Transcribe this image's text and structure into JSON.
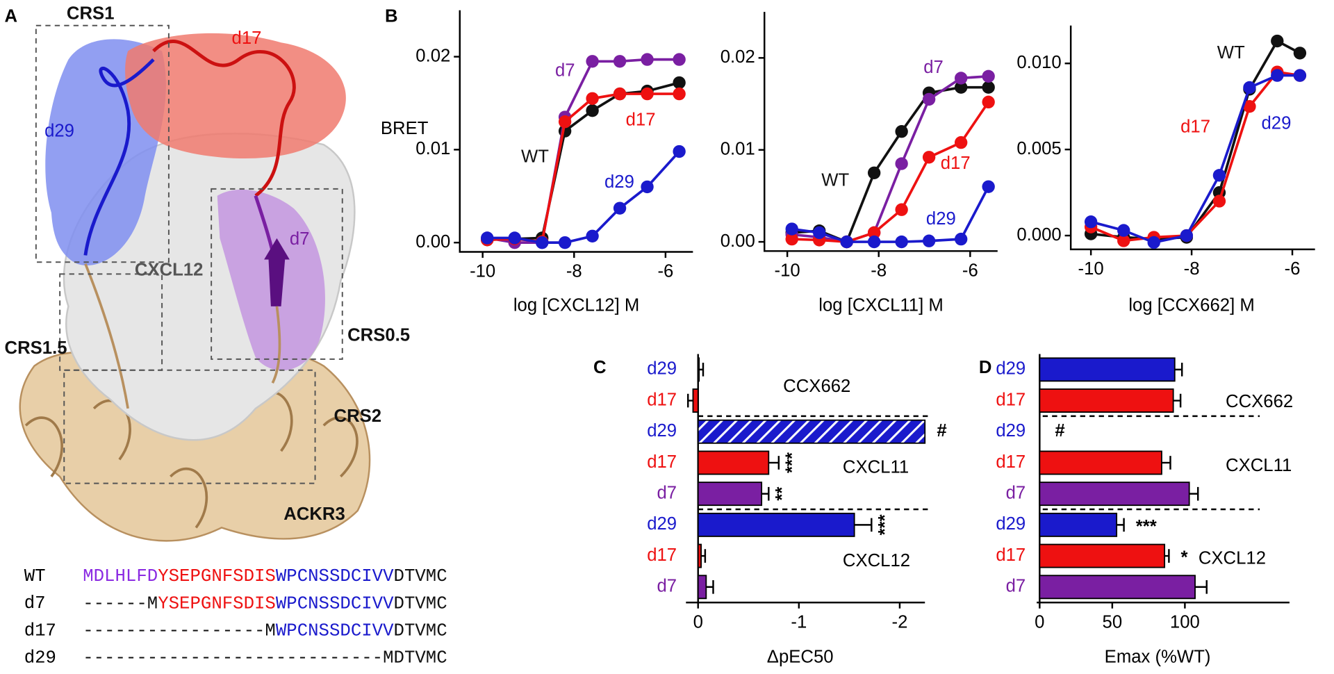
{
  "panel_labels": [
    "A",
    "B",
    "C",
    "D"
  ],
  "structure": {
    "labels": [
      {
        "text": "CRS1",
        "color": "#111111"
      },
      {
        "text": "d17",
        "color": "#ee1111"
      },
      {
        "text": "d29",
        "color": "#1a1acc"
      },
      {
        "text": "d7",
        "color": "#7a1fa2"
      },
      {
        "text": "CXCL12",
        "color": "#555555"
      },
      {
        "text": "CRS1.5",
        "color": "#111111"
      },
      {
        "text": "CRS0.5",
        "color": "#111111"
      },
      {
        "text": "CRS2",
        "color": "#111111"
      },
      {
        "text": "ACKR3",
        "color": "#111111"
      }
    ]
  },
  "sequences": [
    {
      "name": "WT",
      "segments": [
        {
          "text": "MDLHLFD",
          "color": "#8b2be2"
        },
        {
          "text": "YSEPGNFSDIS",
          "color": "#ee1111"
        },
        {
          "text": "WPCNSSDCIVV",
          "color": "#1a1acc"
        },
        {
          "text": "DTVMC",
          "color": "#111111"
        }
      ]
    },
    {
      "name": "d7",
      "segments": [
        {
          "text": "------M",
          "color": "#111111"
        },
        {
          "text": "YSEPGNFSDIS",
          "color": "#ee1111"
        },
        {
          "text": "WPCNSSDCIVV",
          "color": "#1a1acc"
        },
        {
          "text": "DTVMC",
          "color": "#111111"
        }
      ]
    },
    {
      "name": "d17",
      "segments": [
        {
          "text": "-----------------M",
          "color": "#111111"
        },
        {
          "text": "WPCNSSDCIVV",
          "color": "#1a1acc"
        },
        {
          "text": "DTVMC",
          "color": "#111111"
        }
      ]
    },
    {
      "name": "d29",
      "segments": [
        {
          "text": "----------------------------MDTVMC",
          "color": "#111111"
        }
      ]
    }
  ],
  "chart_data": [
    {
      "type": "line",
      "ylabel": "BRET",
      "xlabel": "log [CXCL12] M",
      "x": [
        -9.9,
        -9.3,
        -8.7,
        -8.2,
        -7.6,
        -7.0,
        -6.4,
        -5.7
      ],
      "xlim": [
        -10.5,
        -5.4
      ],
      "ylim": [
        -0.001,
        0.025
      ],
      "xticks": [
        -10,
        -8,
        -6
      ],
      "yticks": [
        {
          "value": 0,
          "label": "0.00"
        },
        {
          "value": 0.01,
          "label": "0.01"
        },
        {
          "value": 0.02,
          "label": "0.02"
        }
      ],
      "series": [
        {
          "name": "WT",
          "color": "#111111",
          "values": [
            0.0003,
            0.0004,
            0.0005,
            0.012,
            0.0142,
            0.016,
            0.0163,
            0.0172
          ]
        },
        {
          "name": "d7",
          "color": "#7a1fa2",
          "values": [
            0.0005,
            0.0,
            0.0,
            0.0135,
            0.0195,
            0.0195,
            0.0197,
            0.0197
          ]
        },
        {
          "name": "d17",
          "color": "#ee1111",
          "values": [
            0.0003,
            0.0004,
            0.0001,
            0.013,
            0.0155,
            0.016,
            0.016,
            0.016
          ]
        },
        {
          "name": "d29",
          "color": "#1a1acc",
          "values": [
            0.0005,
            0.0005,
            0.0,
            0.0,
            0.0007,
            0.0037,
            0.006,
            0.0098
          ]
        }
      ]
    },
    {
      "type": "line",
      "xlabel": "log [CXCL11] M",
      "x": [
        -9.9,
        -9.3,
        -8.7,
        -8.1,
        -7.5,
        -6.9,
        -6.2,
        -5.6
      ],
      "xlim": [
        -10.5,
        -5.4
      ],
      "ylim": [
        -0.001,
        0.025
      ],
      "xticks": [
        -10,
        -8,
        -6
      ],
      "yticks": [
        {
          "value": 0,
          "label": "0.00"
        },
        {
          "value": 0.01,
          "label": "0.01"
        },
        {
          "value": 0.02,
          "label": "0.02"
        }
      ],
      "series": [
        {
          "name": "WT",
          "color": "#111111",
          "values": [
            0.001,
            0.0012,
            0.0,
            0.0075,
            0.012,
            0.0162,
            0.0168,
            0.0168
          ]
        },
        {
          "name": "d7",
          "color": "#7a1fa2",
          "values": [
            0.0008,
            0.0005,
            0.0,
            0.001,
            0.0085,
            0.0155,
            0.0178,
            0.018
          ]
        },
        {
          "name": "d17",
          "color": "#ee1111",
          "values": [
            0.0003,
            0.0002,
            0.0,
            0.001,
            0.0035,
            0.0092,
            0.0108,
            0.0152
          ]
        },
        {
          "name": "d29",
          "color": "#1a1acc",
          "values": [
            0.0014,
            0.001,
            0.0,
            0.0,
            0.0,
            0.0001,
            0.0003,
            0.006
          ]
        }
      ]
    },
    {
      "type": "line",
      "xlabel": "log [CCX662] M",
      "x": [
        -10.0,
        -9.35,
        -8.75,
        -8.1,
        -7.45,
        -6.85,
        -6.3,
        -5.85
      ],
      "xlim": [
        -10.4,
        -5.55
      ],
      "ylim": [
        -0.0008,
        0.0122
      ],
      "xticks": [
        -10,
        -8,
        -6
      ],
      "yticks": [
        {
          "value": 0,
          "label": "0.000"
        },
        {
          "value": 0.005,
          "label": "0.005"
        },
        {
          "value": 0.01,
          "label": "0.010"
        }
      ],
      "series": [
        {
          "name": "WT",
          "color": "#111111",
          "values": [
            0.0001,
            -0.0001,
            -0.0002,
            -0.0001,
            0.0025,
            0.0085,
            0.0113,
            0.0106
          ]
        },
        {
          "name": "d17",
          "color": "#ee1111",
          "values": [
            0.0005,
            -0.0003,
            -0.0001,
            0.0,
            0.002,
            0.0075,
            0.0095,
            0.0093
          ]
        },
        {
          "name": "d29",
          "color": "#1a1acc",
          "values": [
            0.0008,
            0.0003,
            -0.0004,
            0.0,
            0.0035,
            0.0086,
            0.0093,
            0.0093
          ]
        }
      ]
    },
    {
      "type": "bar",
      "xlabel": "ΔpEC50",
      "xlim": [
        0.12,
        -2.25
      ],
      "xticks": [
        0,
        -1,
        -2
      ],
      "groups": [
        {
          "name": "CCX662",
          "categories": [
            "d29",
            "d17"
          ],
          "colors": [
            "#1a1acc",
            "#ee1111"
          ],
          "values": [
            -0.01,
            0.05
          ],
          "errors": [
            0.04,
            0.05
          ],
          "significance": [
            null,
            null
          ],
          "hatched": [
            false,
            false
          ]
        },
        {
          "name": "CXCL11",
          "categories": [
            "d29",
            "d17",
            "d7"
          ],
          "colors": [
            "#1a1acc",
            "#ee1111",
            "#7a1fa2"
          ],
          "values": [
            -2.25,
            -0.7,
            -0.63
          ],
          "errors": [
            null,
            0.1,
            0.07
          ],
          "significance": [
            "#",
            "***",
            "**"
          ],
          "hatched": [
            true,
            false,
            false
          ]
        },
        {
          "name": "CXCL12",
          "categories": [
            "d29",
            "d17",
            "d7"
          ],
          "colors": [
            "#1a1acc",
            "#ee1111",
            "#7a1fa2"
          ],
          "values": [
            -1.55,
            -0.03,
            -0.08
          ],
          "errors": [
            0.17,
            0.04,
            0.07
          ],
          "significance": [
            "***",
            null,
            null
          ],
          "hatched": [
            false,
            false,
            false
          ]
        }
      ]
    },
    {
      "type": "bar",
      "xlabel": "Emax (%WT)",
      "xlim": [
        -2,
        172
      ],
      "xticks": [
        0,
        50,
        100
      ],
      "groups": [
        {
          "name": "CCX662",
          "categories": [
            "d29",
            "d17"
          ],
          "colors": [
            "#1a1acc",
            "#ee1111"
          ],
          "values": [
            93,
            92
          ],
          "errors": [
            5,
            5
          ],
          "significance": [
            null,
            null
          ],
          "hatched": [
            false,
            false
          ]
        },
        {
          "name": "CXCL11",
          "categories": [
            "d29",
            "d17",
            "d7"
          ],
          "colors": [
            "#1a1acc",
            "#ee1111",
            "#7a1fa2"
          ],
          "values": [
            null,
            84,
            103
          ],
          "errors": [
            null,
            6,
            6
          ],
          "significance": [
            "#",
            null,
            null
          ],
          "hatched": [
            false,
            false,
            false
          ]
        },
        {
          "name": "CXCL12",
          "categories": [
            "d29",
            "d17",
            "d7"
          ],
          "colors": [
            "#1a1acc",
            "#ee1111",
            "#7a1fa2"
          ],
          "values": [
            53,
            86,
            107
          ],
          "errors": [
            5,
            3,
            8
          ],
          "significance": [
            "***",
            "*",
            null
          ],
          "hatched": [
            false,
            false,
            false
          ]
        }
      ]
    }
  ]
}
